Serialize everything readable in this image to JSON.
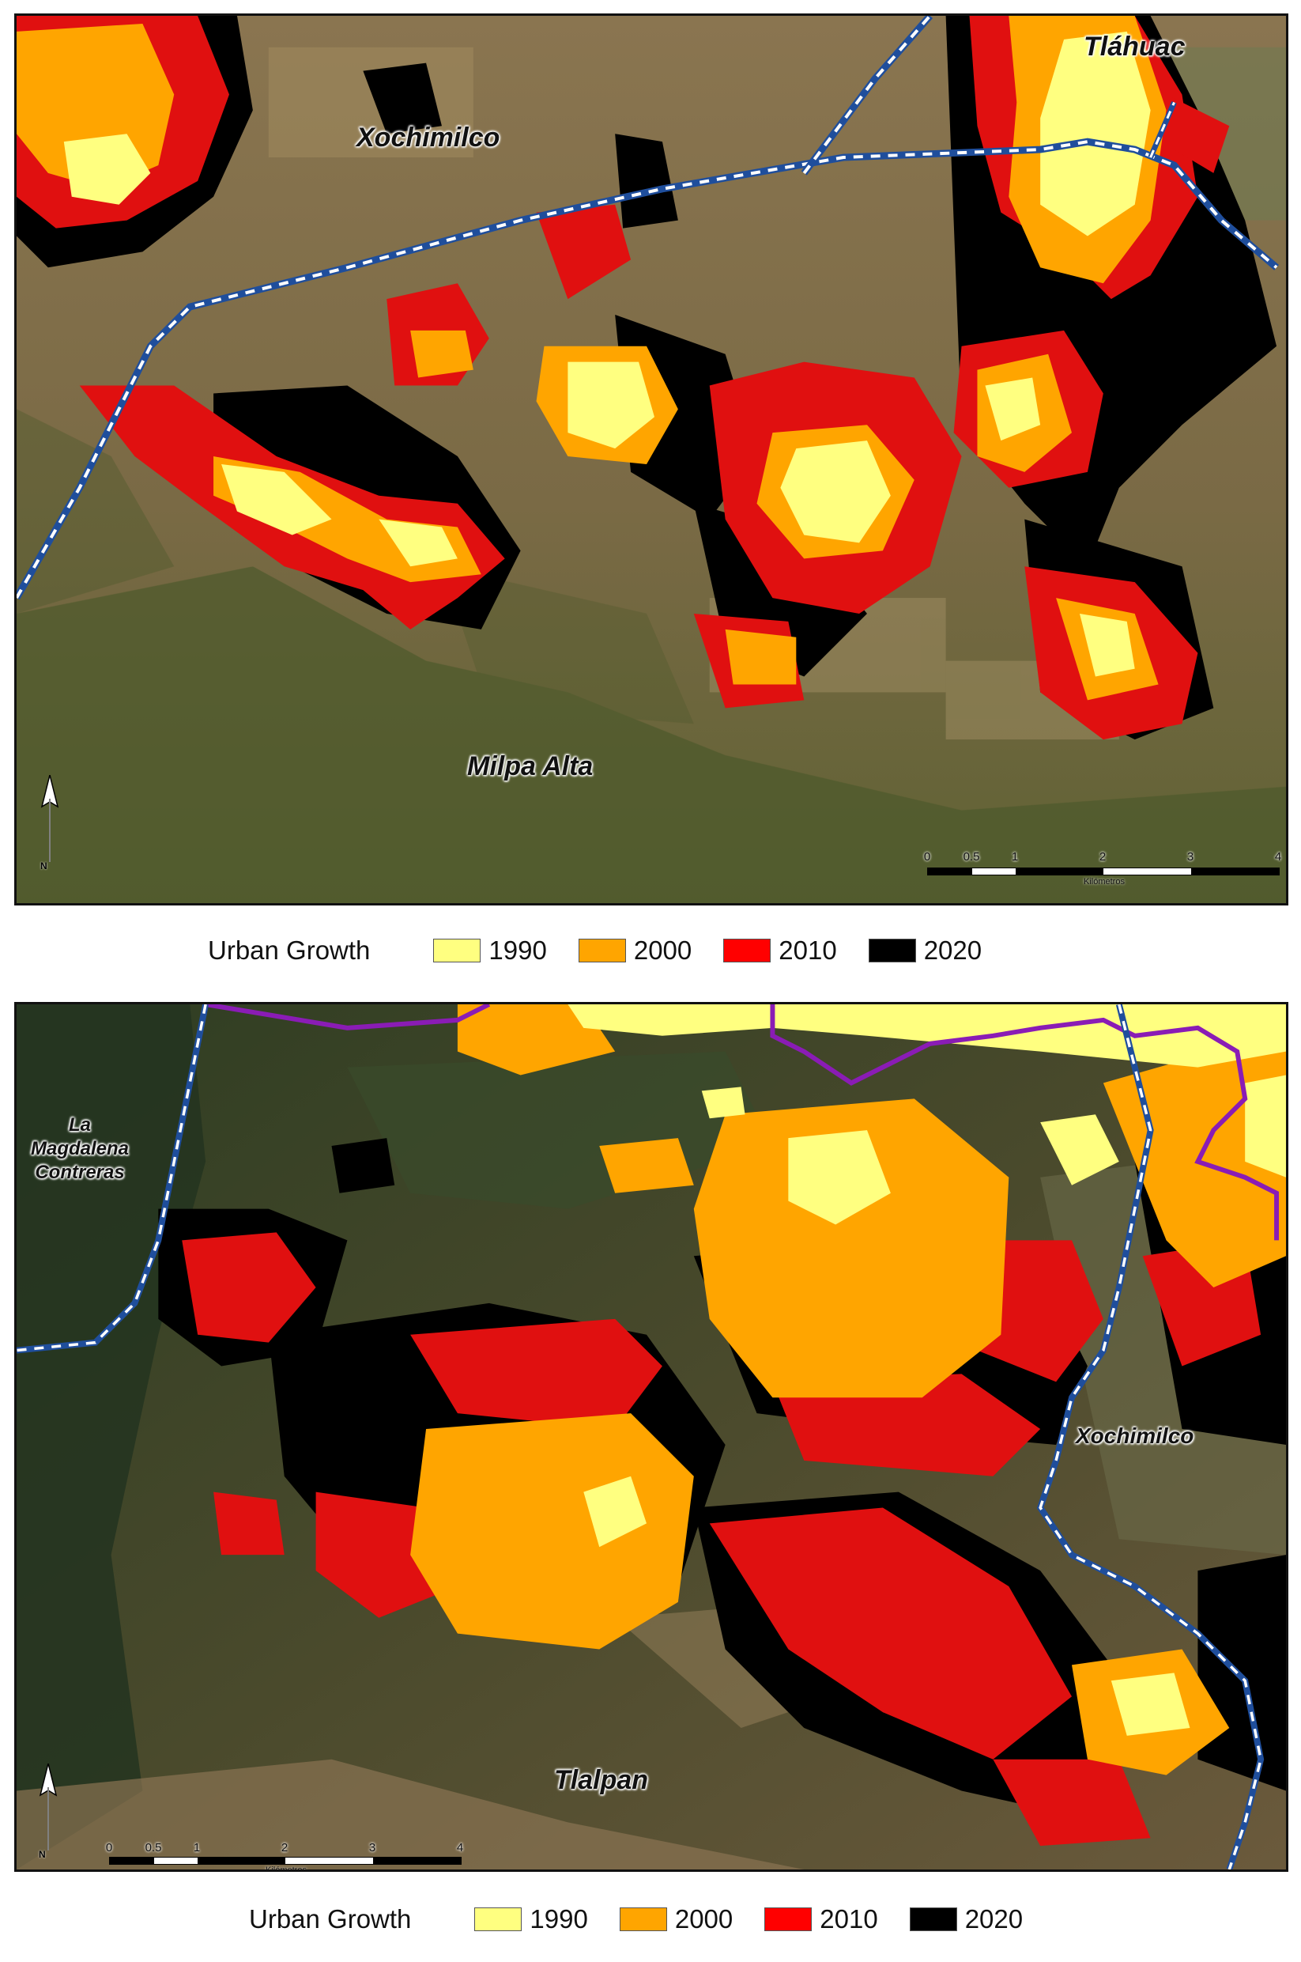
{
  "top_map": {
    "labels": {
      "xochimilco": "Xochimilco",
      "tlahuac": "Tláhuac",
      "milpa_alta": "Milpa Alta"
    },
    "scale": {
      "ticks": [
        "0",
        "0.5",
        "1",
        "2",
        "3",
        "4"
      ],
      "unit": "Kilómetros"
    },
    "north": "N"
  },
  "bottom_map": {
    "labels": {
      "magdalena": "La Magdalena Contreras",
      "magdalena_l1": "La",
      "magdalena_l2": "Magdalena",
      "magdalena_l3": "Contreras",
      "xochimilco": "Xochimilco",
      "tlalpan": "Tlalpan"
    },
    "scale": {
      "ticks": [
        "0",
        "0.5",
        "1",
        "2",
        "3",
        "4"
      ],
      "unit": "Kilómetros"
    },
    "north": "N"
  },
  "legend": {
    "title": "Urban Growth",
    "items": [
      {
        "label": "1990",
        "color": "#ffff80"
      },
      {
        "label": "2000",
        "color": "#ffa500"
      },
      {
        "label": "2010",
        "color": "#ff0000"
      },
      {
        "label": "2020",
        "color": "#000000"
      }
    ]
  },
  "colors": {
    "boundary_municipal": "#1f4e9c",
    "boundary_purple": "#8a1cb5",
    "imagery_soil": "#7d6a48",
    "imagery_vegetation": "#3c4a2a"
  }
}
